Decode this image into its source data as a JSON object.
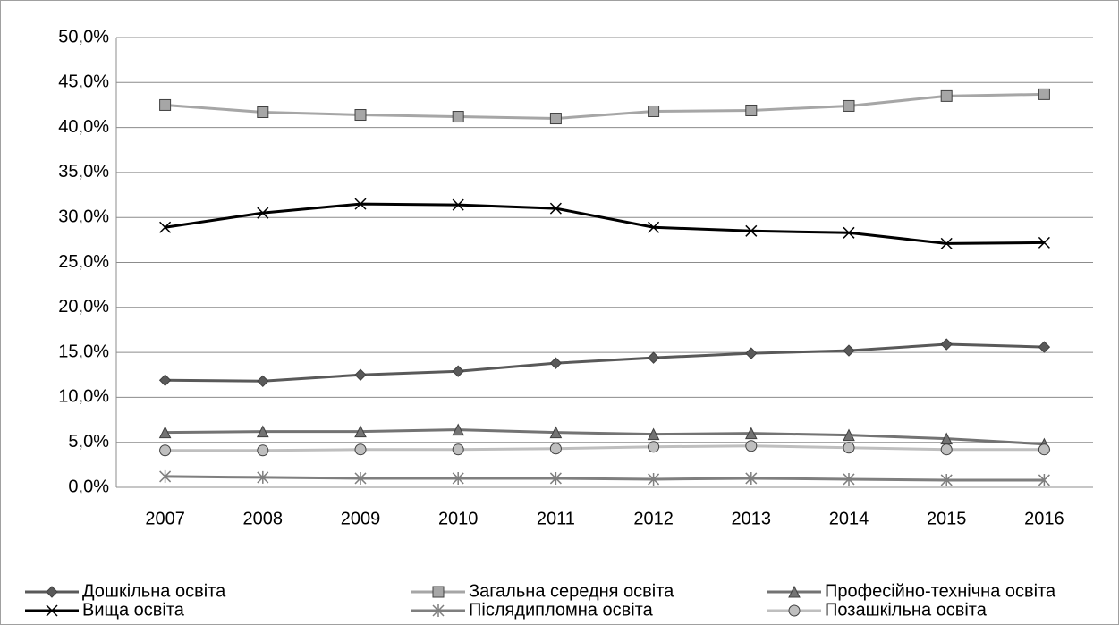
{
  "chart_data": {
    "type": "line",
    "categories": [
      "2007",
      "2008",
      "2009",
      "2010",
      "2011",
      "2012",
      "2013",
      "2014",
      "2015",
      "2016"
    ],
    "series": [
      {
        "name": "Дошкільна освіта",
        "color": "#595959",
        "marker": "diamond",
        "values": [
          11.9,
          11.8,
          12.5,
          12.9,
          13.8,
          14.4,
          14.9,
          15.2,
          15.9,
          15.6
        ]
      },
      {
        "name": "Загальна середня освіта",
        "color": "#a6a6a6",
        "marker": "square",
        "values": [
          42.5,
          41.7,
          41.4,
          41.2,
          41.0,
          41.8,
          41.9,
          42.4,
          43.5,
          43.7
        ]
      },
      {
        "name": "Професійно-технічна освіта",
        "color": "#737373",
        "marker": "triangle",
        "values": [
          6.1,
          6.2,
          6.2,
          6.4,
          6.1,
          5.9,
          6.0,
          5.8,
          5.4,
          4.8
        ]
      },
      {
        "name": "Вища освіта",
        "color": "#000000",
        "marker": "x",
        "values": [
          28.9,
          30.5,
          31.5,
          31.4,
          31.0,
          28.9,
          28.5,
          28.3,
          27.1,
          27.2
        ]
      },
      {
        "name": "Післядипломна освіта",
        "color": "#7f7f7f",
        "marker": "star",
        "values": [
          1.2,
          1.1,
          1.0,
          1.0,
          1.0,
          0.9,
          1.0,
          0.9,
          0.8,
          0.8
        ]
      },
      {
        "name": "Позашкільна освіта",
        "color": "#bfbfbf",
        "marker": "circle",
        "values": [
          4.1,
          4.1,
          4.2,
          4.2,
          4.3,
          4.5,
          4.6,
          4.4,
          4.2,
          4.2
        ]
      }
    ],
    "ylim": [
      0,
      50
    ],
    "yticks": [
      {
        "value": 0,
        "label": "0,0%"
      },
      {
        "value": 5,
        "label": "5,0%"
      },
      {
        "value": 10,
        "label": "10,0%"
      },
      {
        "value": 15,
        "label": "15,0%"
      },
      {
        "value": 20,
        "label": "20,0%"
      },
      {
        "value": 25,
        "label": "25,0%"
      },
      {
        "value": 30,
        "label": "30,0%"
      },
      {
        "value": 35,
        "label": "35,0%"
      },
      {
        "value": 40,
        "label": "40,0%"
      },
      {
        "value": 45,
        "label": "45,0%"
      },
      {
        "value": 50,
        "label": "50,0%"
      }
    ],
    "grid": true,
    "legend": "bottom"
  }
}
